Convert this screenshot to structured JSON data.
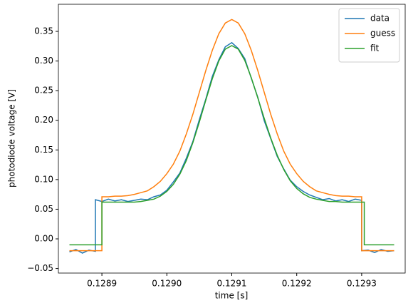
{
  "chart_data": {
    "type": "line",
    "xlabel": "time [s]",
    "ylabel": "photodiode voltage [V]",
    "xlim": [
      0.128833,
      0.129367
    ],
    "xticks": [
      0.1289,
      {
        "value": 0.129,
        "label": "0.1290"
      },
      0.1291,
      0.1292,
      0.1293
    ],
    "ylim": [
      -0.0577,
      0.3957
    ],
    "yticks": [
      {
        "value": -0.05,
        "label": "−0.05"
      },
      {
        "value": 0,
        "label": "0.00"
      },
      0.05,
      {
        "value": 0.1,
        "label": "0.10"
      },
      0.15,
      {
        "value": 0.2,
        "label": "0.20"
      },
      0.25,
      {
        "value": 0.3,
        "label": "0.30"
      },
      0.35
    ],
    "grid": false,
    "legend": "upper right",
    "series": [
      {
        "name": "data",
        "color": "#1f77b4",
        "x": [
          0.12885,
          0.12886,
          0.12887,
          0.12888,
          0.12889,
          0.12889,
          0.1289,
          0.12891,
          0.12892,
          0.12893,
          0.12894,
          0.12895,
          0.12896,
          0.12897,
          0.12898,
          0.12899,
          0.129,
          0.12901,
          0.12902,
          0.12903,
          0.12904,
          0.12905,
          0.12906,
          0.12907,
          0.12908,
          0.12909,
          0.1291,
          0.12911,
          0.12912,
          0.12913,
          0.12914,
          0.12915,
          0.12916,
          0.12917,
          0.12918,
          0.12919,
          0.1292,
          0.12921,
          0.12922,
          0.12923,
          0.12924,
          0.12925,
          0.12926,
          0.12927,
          0.12928,
          0.12929,
          0.1293,
          0.1293,
          0.12931,
          0.12932,
          0.12933,
          0.12934,
          0.12935
        ],
        "values": [
          -0.022,
          -0.018,
          -0.024,
          -0.019,
          -0.021,
          0.066,
          0.063,
          0.067,
          0.064,
          0.066,
          0.063,
          0.065,
          0.067,
          0.066,
          0.071,
          0.074,
          0.082,
          0.096,
          0.111,
          0.136,
          0.164,
          0.201,
          0.236,
          0.274,
          0.302,
          0.324,
          0.331,
          0.321,
          0.304,
          0.271,
          0.239,
          0.199,
          0.169,
          0.139,
          0.118,
          0.099,
          0.088,
          0.08,
          0.074,
          0.07,
          0.066,
          0.068,
          0.064,
          0.066,
          0.063,
          0.067,
          0.065,
          -0.02,
          -0.019,
          -0.023,
          -0.018,
          -0.021,
          -0.02
        ]
      },
      {
        "name": "guess",
        "color": "#ff7f0e",
        "x": [
          0.12885,
          0.1289,
          0.1289,
          0.12891,
          0.12892,
          0.12893,
          0.12894,
          0.12895,
          0.12896,
          0.12897,
          0.12898,
          0.12899,
          0.129,
          0.12901,
          0.12902,
          0.12903,
          0.12904,
          0.12905,
          0.12906,
          0.12907,
          0.12908,
          0.12909,
          0.1291,
          0.12911,
          0.12912,
          0.12913,
          0.12914,
          0.12915,
          0.12916,
          0.12917,
          0.12918,
          0.12919,
          0.1292,
          0.12921,
          0.12922,
          0.12923,
          0.12924,
          0.12925,
          0.12926,
          0.12927,
          0.12928,
          0.12929,
          0.1293,
          0.1293,
          0.12935
        ],
        "values": [
          -0.02,
          -0.02,
          0.071,
          0.071,
          0.072,
          0.072,
          0.073,
          0.075,
          0.078,
          0.081,
          0.088,
          0.097,
          0.11,
          0.126,
          0.148,
          0.177,
          0.21,
          0.247,
          0.284,
          0.318,
          0.346,
          0.364,
          0.37,
          0.364,
          0.346,
          0.318,
          0.284,
          0.247,
          0.21,
          0.177,
          0.148,
          0.126,
          0.11,
          0.097,
          0.088,
          0.081,
          0.078,
          0.075,
          0.073,
          0.072,
          0.072,
          0.071,
          0.071,
          -0.02,
          -0.02
        ]
      },
      {
        "name": "fit",
        "color": "#2ca02c",
        "x": [
          0.12885,
          0.1289,
          0.1289,
          0.12891,
          0.12892,
          0.12893,
          0.12894,
          0.12895,
          0.12896,
          0.12897,
          0.12898,
          0.12899,
          0.129,
          0.12901,
          0.12902,
          0.12903,
          0.12904,
          0.12905,
          0.12906,
          0.12907,
          0.12908,
          0.12909,
          0.1291,
          0.12911,
          0.12912,
          0.12913,
          0.12914,
          0.12915,
          0.12916,
          0.12917,
          0.12918,
          0.12919,
          0.1292,
          0.12921,
          0.12922,
          0.12923,
          0.12924,
          0.12925,
          0.12926,
          0.12927,
          0.12928,
          0.12929,
          0.1293,
          0.129304,
          0.129304,
          0.12935
        ],
        "values": [
          -0.01,
          -0.01,
          0.062,
          0.062,
          0.062,
          0.062,
          0.062,
          0.062,
          0.063,
          0.065,
          0.067,
          0.072,
          0.08,
          0.092,
          0.109,
          0.132,
          0.162,
          0.197,
          0.234,
          0.27,
          0.3,
          0.32,
          0.326,
          0.32,
          0.301,
          0.272,
          0.238,
          0.203,
          0.17,
          0.141,
          0.117,
          0.098,
          0.085,
          0.076,
          0.07,
          0.067,
          0.065,
          0.063,
          0.063,
          0.062,
          0.062,
          0.062,
          0.062,
          0.062,
          -0.01,
          -0.01
        ]
      }
    ]
  }
}
